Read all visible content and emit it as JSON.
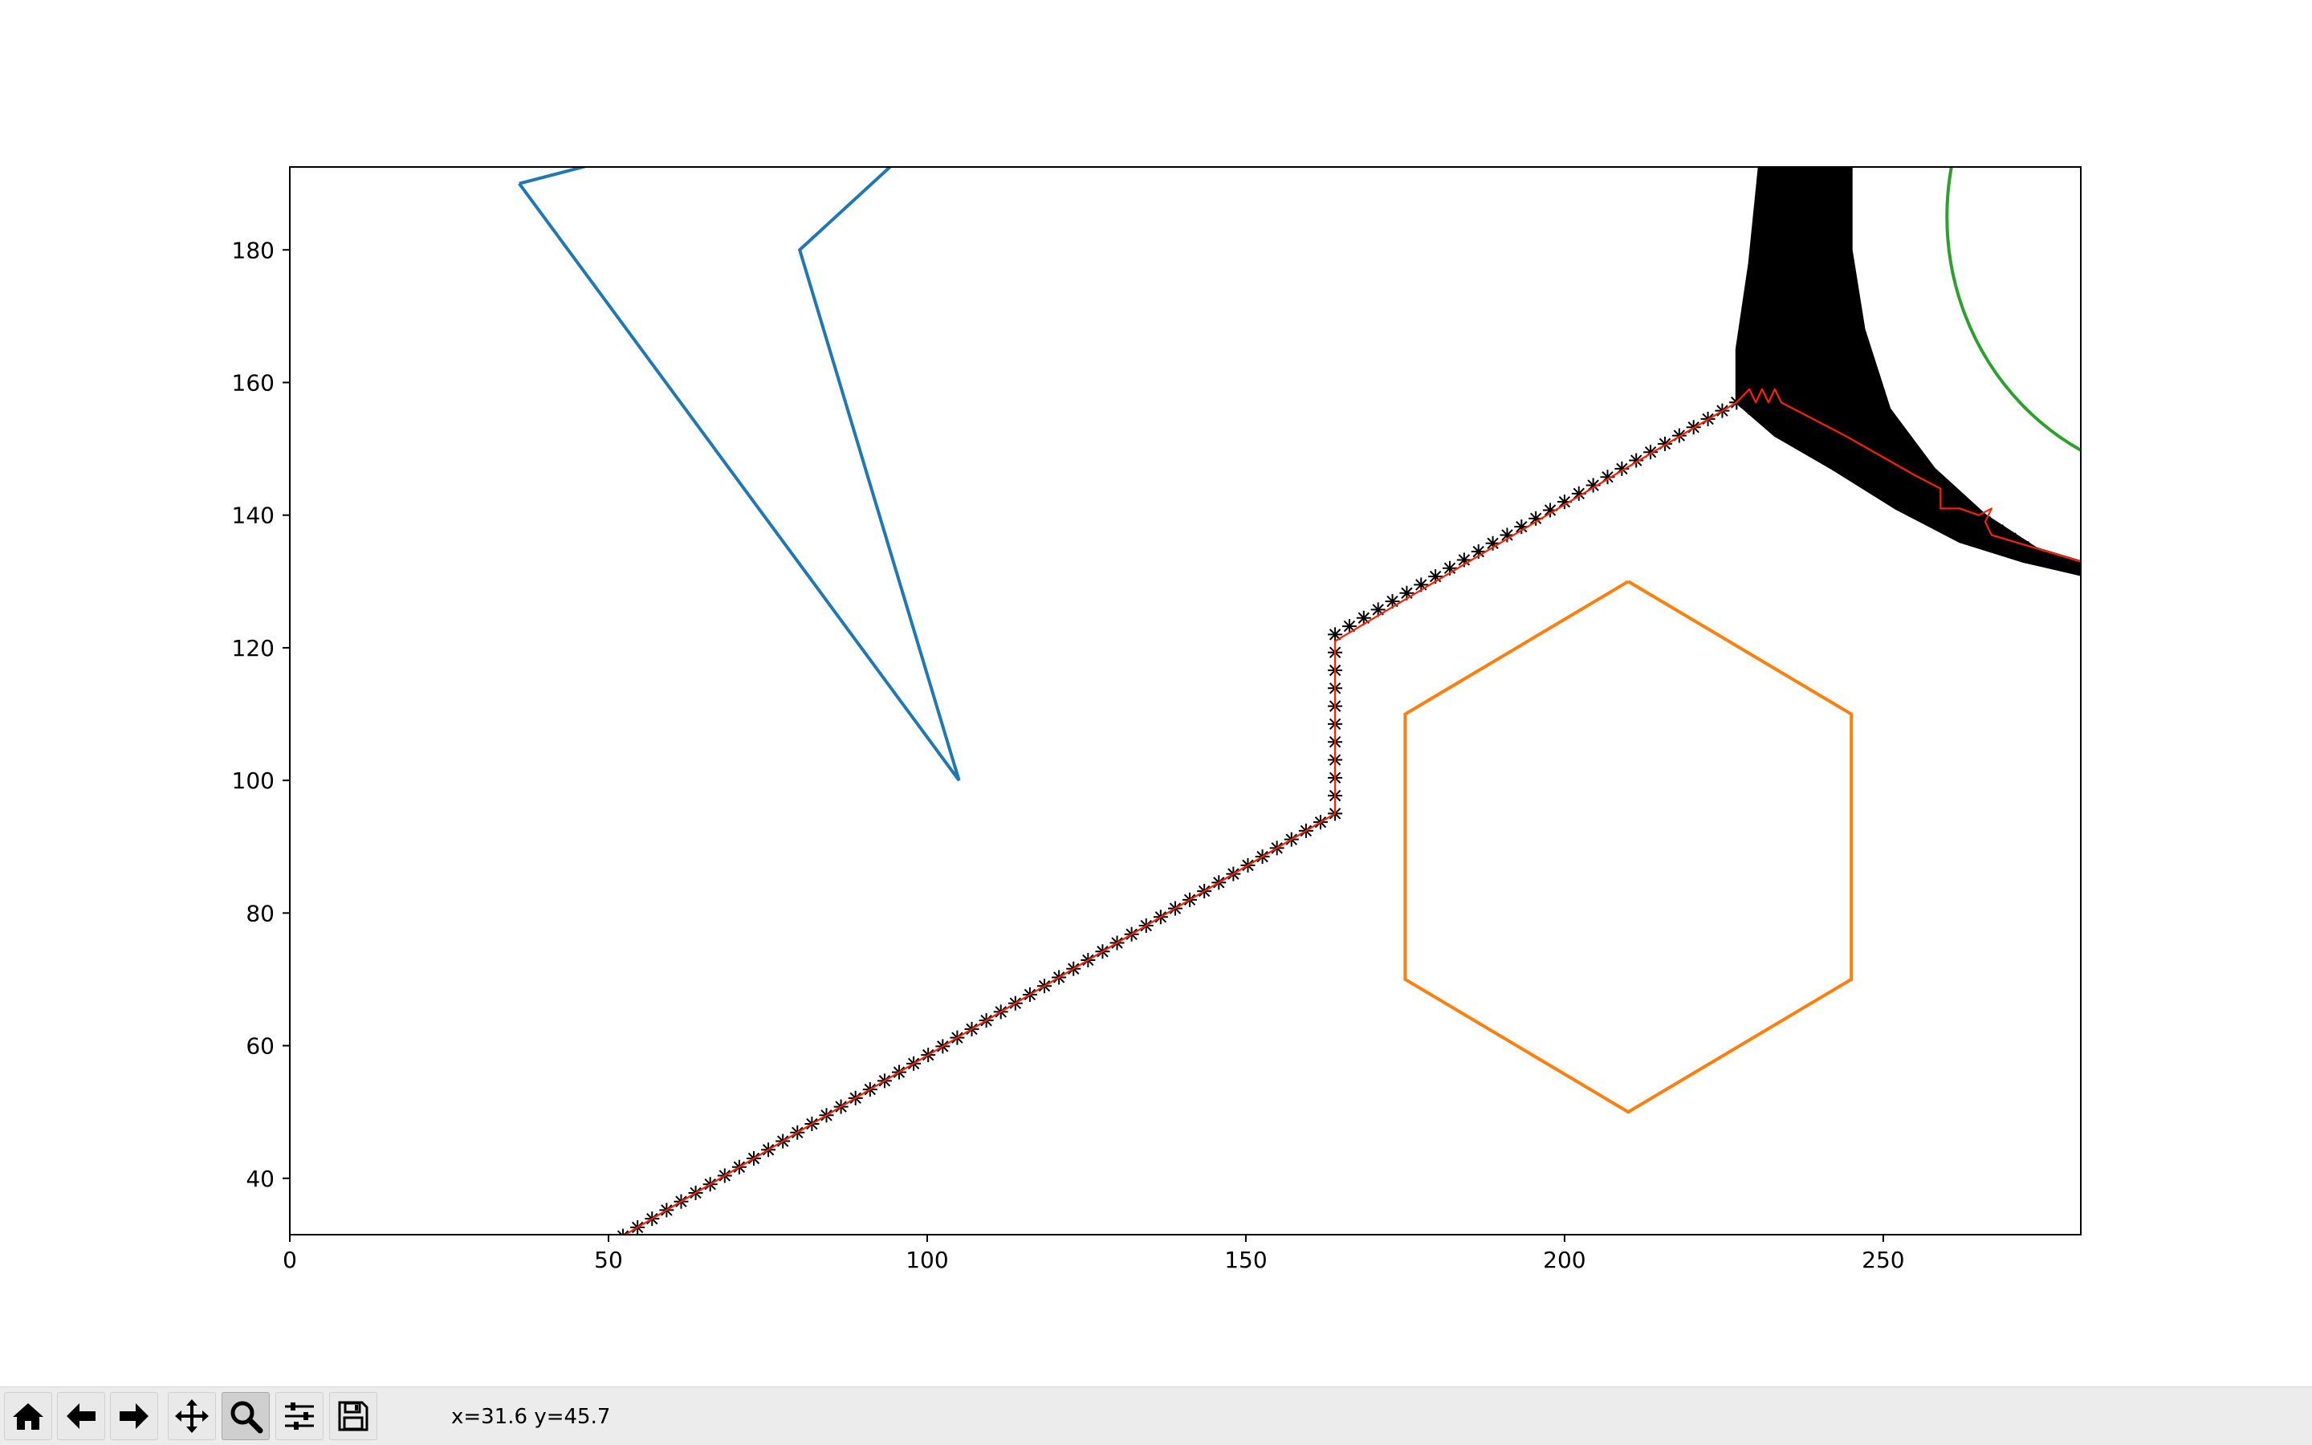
{
  "chart_data": {
    "type": "scatter",
    "title": "",
    "xlabel": "",
    "ylabel": "",
    "xlim": [
      0,
      281
    ],
    "ylim": [
      31.5,
      192.5
    ],
    "xticks": [
      0,
      50,
      100,
      150,
      200,
      250
    ],
    "yticks": [
      40,
      60,
      80,
      100,
      120,
      140,
      160,
      180
    ],
    "grid": false,
    "series": [
      {
        "kind": "polygon",
        "color": "#1f77b4",
        "points": [
          [
            36,
            190
          ],
          [
            105,
            100
          ],
          [
            80,
            180
          ],
          [
            97,
            195
          ],
          [
            48,
            193
          ],
          [
            36,
            190
          ]
        ]
      },
      {
        "kind": "polygon",
        "color": "#ff7f0e",
        "points": [
          [
            210,
            130
          ],
          [
            245,
            110
          ],
          [
            245,
            70
          ],
          [
            210,
            50
          ],
          [
            175,
            70
          ],
          [
            175,
            110
          ],
          [
            210,
            130
          ]
        ]
      },
      {
        "kind": "circle",
        "color": "#2ca02c",
        "center": [
          300,
          185
        ],
        "radius": 40
      },
      {
        "kind": "markers",
        "color": "#000000",
        "marker": "star",
        "points": [
          [
            50,
            30
          ],
          [
            164,
            95
          ],
          [
            164,
            122
          ],
          [
            227,
            157
          ]
        ]
      },
      {
        "kind": "markers",
        "color": "#000000",
        "marker": "star",
        "points": [
          [
            227,
            157
          ],
          [
            240,
            152
          ],
          [
            250,
            147
          ],
          [
            258,
            143
          ],
          [
            266,
            139
          ],
          [
            274,
            134
          ],
          [
            281,
            132
          ]
        ]
      },
      {
        "kind": "region",
        "color": "#000000",
        "points": [
          [
            227,
            197
          ],
          [
            245,
            197
          ],
          [
            245,
            180
          ],
          [
            247,
            168
          ],
          [
            251,
            156
          ],
          [
            258,
            147
          ],
          [
            266,
            140
          ],
          [
            274,
            135
          ],
          [
            281,
            133
          ],
          [
            281,
            131
          ],
          [
            272,
            133
          ],
          [
            262,
            136
          ],
          [
            252,
            141
          ],
          [
            242,
            147
          ],
          [
            233,
            152
          ],
          [
            227,
            157
          ],
          [
            227,
            165
          ],
          [
            229,
            178
          ],
          [
            231,
            197
          ]
        ]
      },
      {
        "kind": "line",
        "color": "#ff2200",
        "points": [
          [
            50,
            30
          ],
          [
            164,
            95
          ],
          [
            164,
            121
          ],
          [
            227,
            157
          ],
          [
            229,
            159
          ],
          [
            230,
            157
          ],
          [
            231,
            159
          ],
          [
            232,
            157
          ],
          [
            233,
            159
          ],
          [
            234,
            157
          ],
          [
            244,
            152
          ],
          [
            255,
            146
          ],
          [
            259,
            144
          ],
          [
            259,
            141
          ],
          [
            262,
            141
          ],
          [
            265,
            140
          ],
          [
            267,
            141
          ],
          [
            266,
            139
          ],
          [
            267,
            137
          ],
          [
            274,
            135
          ],
          [
            281,
            133
          ]
        ]
      }
    ]
  },
  "toolbar": {
    "buttons": [
      {
        "name": "home-icon",
        "label": "Home"
      },
      {
        "name": "back-icon",
        "label": "Back"
      },
      {
        "name": "forward-icon",
        "label": "Forward"
      },
      {
        "name": "pan-icon",
        "label": "Pan"
      },
      {
        "name": "zoom-icon",
        "label": "Zoom",
        "active": true
      },
      {
        "name": "configure-subplots-icon",
        "label": "Subplots"
      },
      {
        "name": "save-icon",
        "label": "Save"
      }
    ],
    "coords": "x=31.6 y=45.7"
  }
}
